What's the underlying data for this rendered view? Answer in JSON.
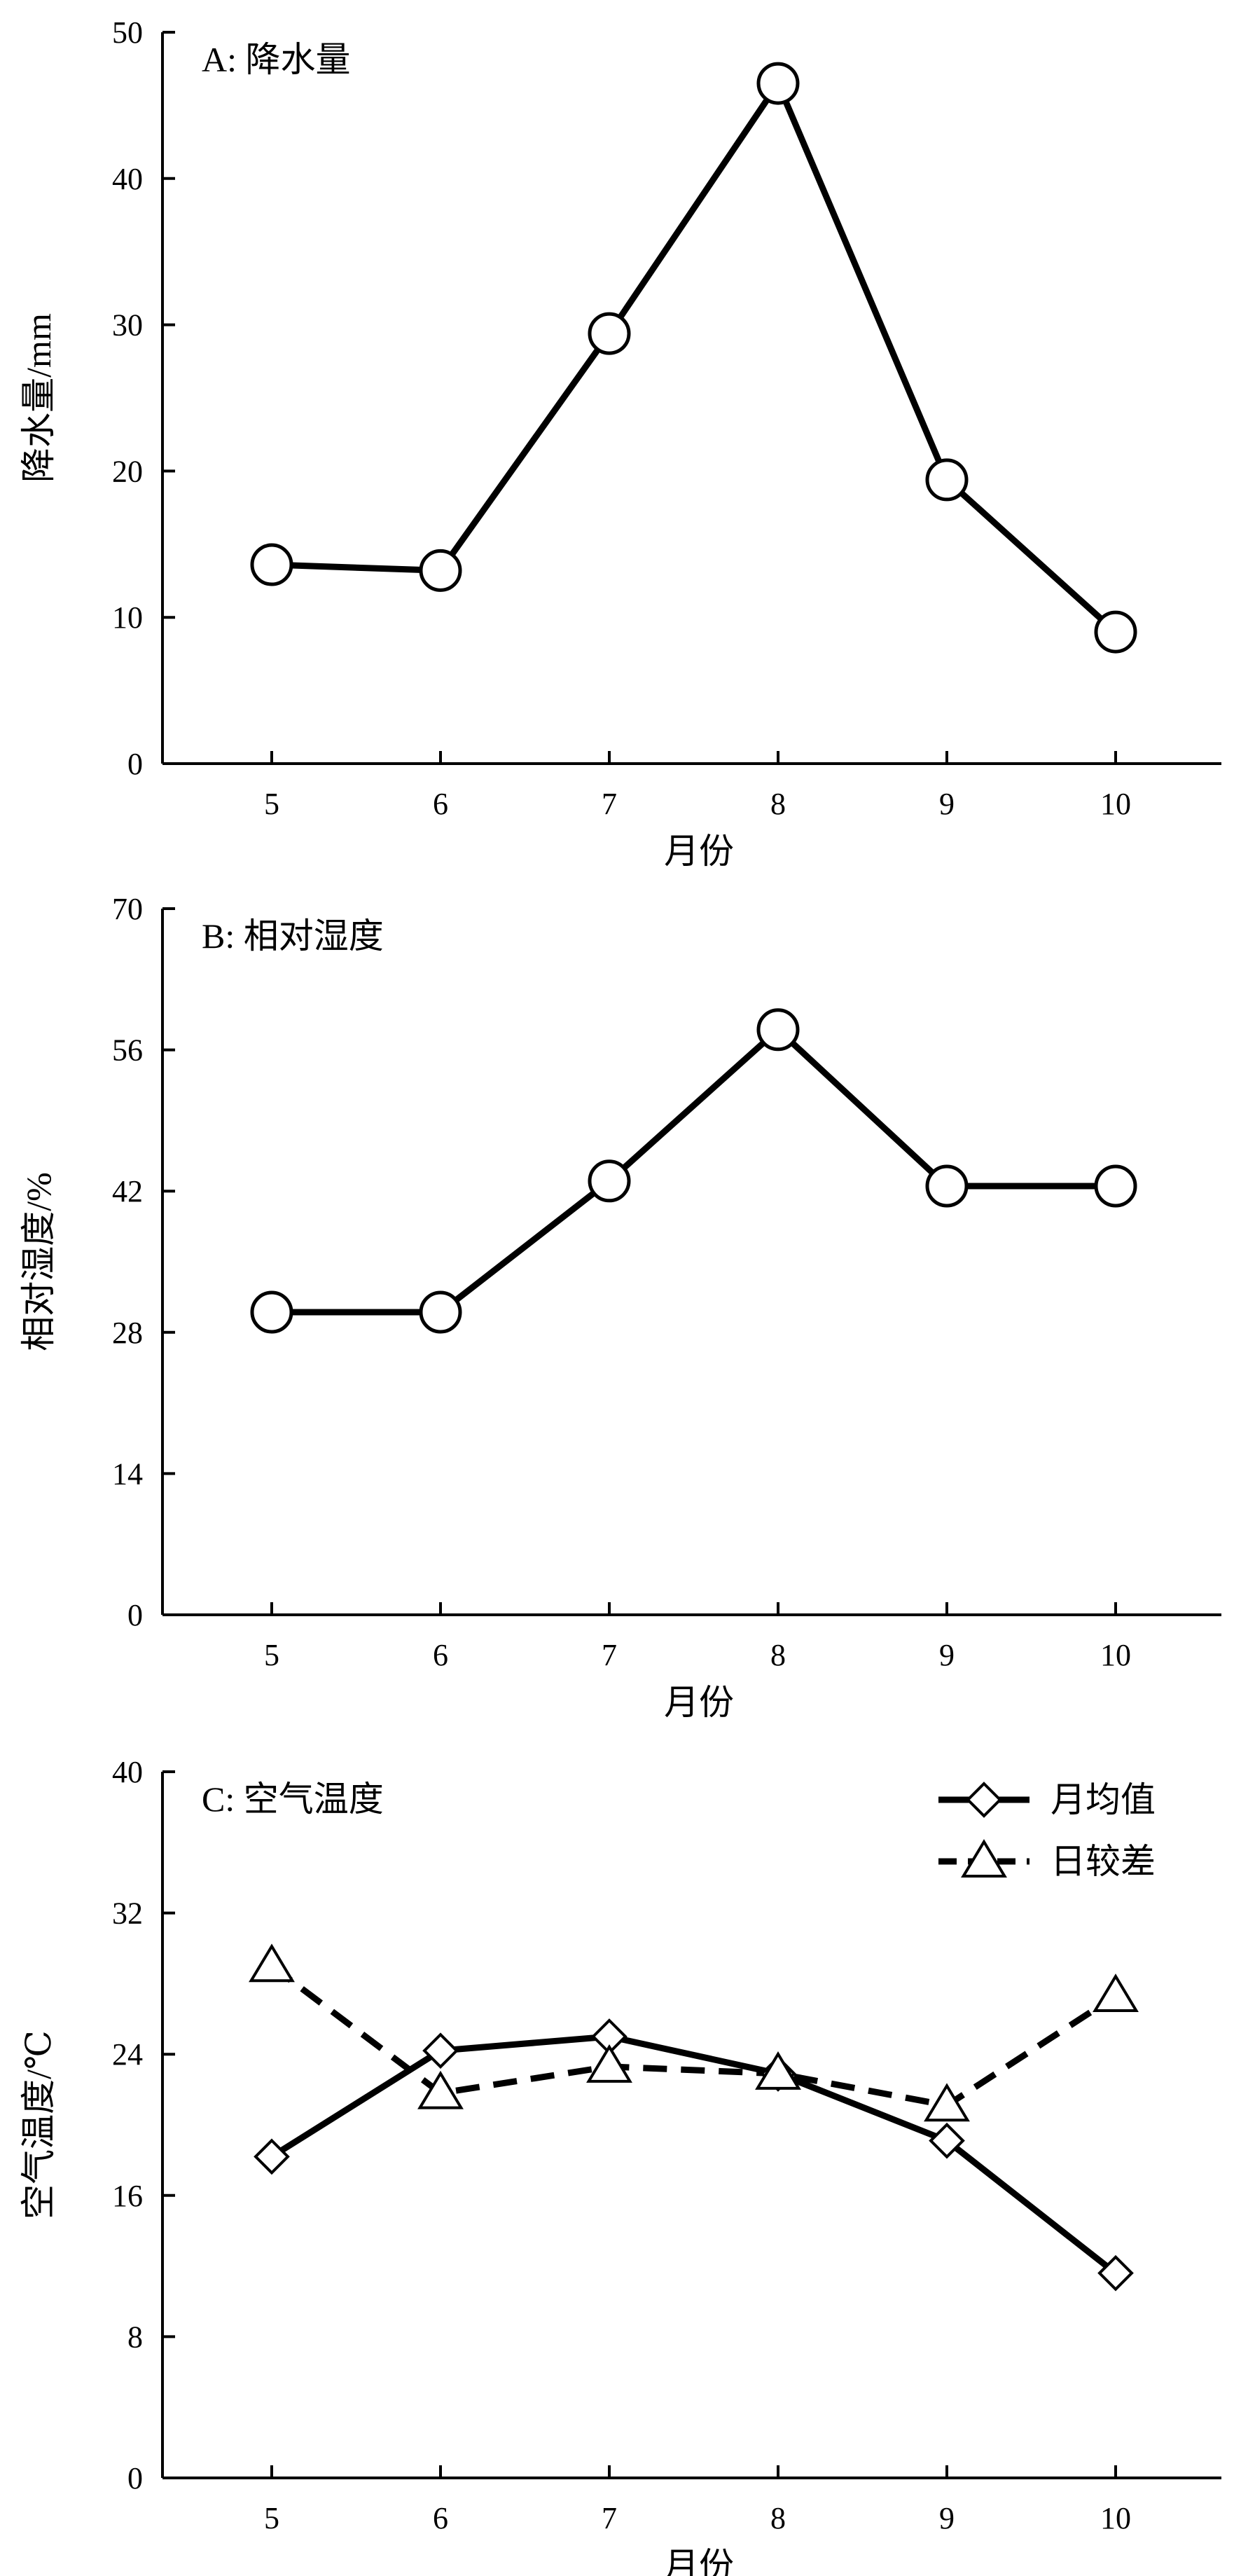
{
  "chart_data": [
    {
      "type": "line",
      "title": "A: 降水量",
      "xlabel": "月份",
      "ylabel": "降水量/mm",
      "categories": [
        "5",
        "6",
        "7",
        "8",
        "9",
        "10"
      ],
      "ylim": [
        0,
        50
      ],
      "yticks": [
        "0",
        "10",
        "20",
        "30",
        "40",
        "50"
      ],
      "grid": false,
      "series": [
        {
          "marker": "circle",
          "dash": "solid",
          "values": [
            13.6,
            13.2,
            29.4,
            46.5,
            19.4,
            9.0
          ]
        }
      ]
    },
    {
      "type": "line",
      "title": "B: 相对湿度",
      "xlabel": "月份",
      "ylabel": "相对湿度/%",
      "categories": [
        "5",
        "6",
        "7",
        "8",
        "9",
        "10"
      ],
      "ylim": [
        0,
        70
      ],
      "yticks": [
        "0",
        "14",
        "28",
        "42",
        "56",
        "70"
      ],
      "grid": false,
      "series": [
        {
          "marker": "circle",
          "dash": "solid",
          "values": [
            30,
            30,
            43,
            58,
            42.5,
            42.5
          ]
        }
      ]
    },
    {
      "type": "line",
      "title": "C: 空气温度",
      "xlabel": "月份",
      "ylabel": "空气温度/℃",
      "categories": [
        "5",
        "6",
        "7",
        "8",
        "9",
        "10"
      ],
      "ylim": [
        0,
        40
      ],
      "yticks": [
        "0",
        "8",
        "16",
        "24",
        "32",
        "40"
      ],
      "grid": false,
      "legend_position": "top-right",
      "series": [
        {
          "name": "月均值",
          "marker": "diamond",
          "dash": "solid",
          "values": [
            18.2,
            24.2,
            25.0,
            22.9,
            19.1,
            11.6
          ]
        },
        {
          "name": "日较差",
          "marker": "triangle",
          "dash": "dashed",
          "values": [
            29.0,
            21.8,
            23.3,
            22.9,
            21.1,
            27.3
          ]
        }
      ]
    }
  ]
}
